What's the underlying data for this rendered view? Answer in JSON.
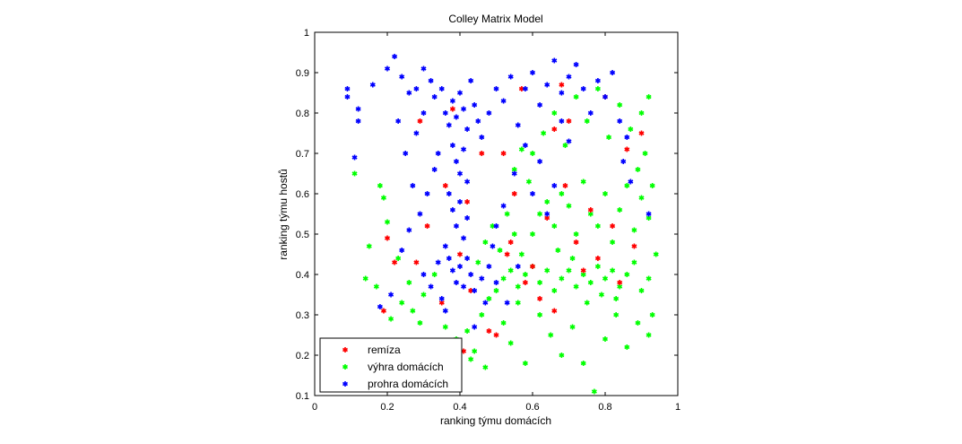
{
  "chart_data": {
    "type": "scatter",
    "title": "Colley Matrix Model",
    "xlabel": "ranking týmu domácích",
    "ylabel": "ranking týmu hostů",
    "xlim": [
      0,
      1
    ],
    "ylim": [
      0.1,
      1
    ],
    "xticks": [
      0,
      0.2,
      0.4,
      0.6,
      0.8,
      1
    ],
    "xtick_labels": [
      "0",
      "0.2",
      "0.4",
      "0.6",
      "0.8",
      "1"
    ],
    "yticks": [
      0.1,
      0.2,
      0.3,
      0.4,
      0.5,
      0.6,
      0.7,
      0.8,
      0.9,
      1
    ],
    "ytick_labels": [
      "0.1",
      "0.2",
      "0.3",
      "0.4",
      "0.5",
      "0.6",
      "0.7",
      "0.8",
      "0.9",
      "1"
    ],
    "grid": false,
    "legend_position": "bottom-left",
    "marker": "*",
    "series": [
      {
        "name": "remíza",
        "color": "#ff0000",
        "points": [
          [
            0.2,
            0.49
          ],
          [
            0.22,
            0.43
          ],
          [
            0.19,
            0.31
          ],
          [
            0.28,
            0.43
          ],
          [
            0.29,
            0.78
          ],
          [
            0.36,
            0.62
          ],
          [
            0.38,
            0.81
          ],
          [
            0.4,
            0.45
          ],
          [
            0.42,
            0.58
          ],
          [
            0.43,
            0.36
          ],
          [
            0.46,
            0.7
          ],
          [
            0.48,
            0.26
          ],
          [
            0.5,
            0.25
          ],
          [
            0.52,
            0.7
          ],
          [
            0.53,
            0.45
          ],
          [
            0.54,
            0.48
          ],
          [
            0.55,
            0.6
          ],
          [
            0.57,
            0.86
          ],
          [
            0.58,
            0.38
          ],
          [
            0.6,
            0.42
          ],
          [
            0.62,
            0.34
          ],
          [
            0.64,
            0.54
          ],
          [
            0.66,
            0.31
          ],
          [
            0.66,
            0.76
          ],
          [
            0.68,
            0.87
          ],
          [
            0.69,
            0.62
          ],
          [
            0.7,
            0.78
          ],
          [
            0.72,
            0.48
          ],
          [
            0.74,
            0.41
          ],
          [
            0.76,
            0.56
          ],
          [
            0.78,
            0.44
          ],
          [
            0.8,
            0.84
          ],
          [
            0.82,
            0.52
          ],
          [
            0.84,
            0.38
          ],
          [
            0.86,
            0.71
          ],
          [
            0.88,
            0.47
          ],
          [
            0.9,
            0.75
          ],
          [
            0.41,
            0.21
          ],
          [
            0.35,
            0.33
          ],
          [
            0.31,
            0.52
          ]
        ]
      },
      {
        "name": "výhra domácích",
        "color": "#00ff00",
        "points": [
          [
            0.11,
            0.65
          ],
          [
            0.14,
            0.39
          ],
          [
            0.17,
            0.37
          ],
          [
            0.19,
            0.59
          ],
          [
            0.21,
            0.29
          ],
          [
            0.24,
            0.33
          ],
          [
            0.27,
            0.31
          ],
          [
            0.29,
            0.28
          ],
          [
            0.33,
            0.22
          ],
          [
            0.36,
            0.27
          ],
          [
            0.39,
            0.24
          ],
          [
            0.42,
            0.26
          ],
          [
            0.44,
            0.21
          ],
          [
            0.46,
            0.3
          ],
          [
            0.48,
            0.34
          ],
          [
            0.5,
            0.36
          ],
          [
            0.52,
            0.39
          ],
          [
            0.54,
            0.41
          ],
          [
            0.56,
            0.37
          ],
          [
            0.58,
            0.4
          ],
          [
            0.6,
            0.42
          ],
          [
            0.62,
            0.38
          ],
          [
            0.64,
            0.41
          ],
          [
            0.66,
            0.36
          ],
          [
            0.68,
            0.39
          ],
          [
            0.7,
            0.41
          ],
          [
            0.72,
            0.37
          ],
          [
            0.74,
            0.4
          ],
          [
            0.76,
            0.38
          ],
          [
            0.78,
            0.42
          ],
          [
            0.8,
            0.39
          ],
          [
            0.82,
            0.41
          ],
          [
            0.84,
            0.37
          ],
          [
            0.86,
            0.4
          ],
          [
            0.88,
            0.43
          ],
          [
            0.9,
            0.36
          ],
          [
            0.92,
            0.39
          ],
          [
            0.6,
            0.5
          ],
          [
            0.62,
            0.55
          ],
          [
            0.64,
            0.58
          ],
          [
            0.66,
            0.52
          ],
          [
            0.68,
            0.6
          ],
          [
            0.7,
            0.57
          ],
          [
            0.72,
            0.5
          ],
          [
            0.74,
            0.63
          ],
          [
            0.76,
            0.55
          ],
          [
            0.78,
            0.52
          ],
          [
            0.8,
            0.6
          ],
          [
            0.82,
            0.48
          ],
          [
            0.84,
            0.56
          ],
          [
            0.86,
            0.62
          ],
          [
            0.88,
            0.51
          ],
          [
            0.9,
            0.59
          ],
          [
            0.92,
            0.54
          ],
          [
            0.6,
            0.7
          ],
          [
            0.63,
            0.75
          ],
          [
            0.66,
            0.8
          ],
          [
            0.69,
            0.72
          ],
          [
            0.72,
            0.84
          ],
          [
            0.75,
            0.78
          ],
          [
            0.78,
            0.86
          ],
          [
            0.81,
            0.74
          ],
          [
            0.84,
            0.82
          ],
          [
            0.87,
            0.76
          ],
          [
            0.9,
            0.8
          ],
          [
            0.92,
            0.84
          ],
          [
            0.55,
            0.66
          ],
          [
            0.57,
            0.71
          ],
          [
            0.59,
            0.63
          ],
          [
            0.62,
            0.3
          ],
          [
            0.65,
            0.25
          ],
          [
            0.68,
            0.2
          ],
          [
            0.71,
            0.27
          ],
          [
            0.74,
            0.18
          ],
          [
            0.77,
            0.11
          ],
          [
            0.8,
            0.24
          ],
          [
            0.83,
            0.3
          ],
          [
            0.86,
            0.22
          ],
          [
            0.89,
            0.28
          ],
          [
            0.92,
            0.25
          ],
          [
            0.52,
            0.28
          ],
          [
            0.54,
            0.23
          ],
          [
            0.56,
            0.33
          ],
          [
            0.58,
            0.18
          ],
          [
            0.47,
            0.17
          ],
          [
            0.43,
            0.19
          ],
          [
            0.45,
            0.43
          ],
          [
            0.47,
            0.48
          ],
          [
            0.49,
            0.52
          ],
          [
            0.51,
            0.46
          ],
          [
            0.53,
            0.55
          ],
          [
            0.55,
            0.5
          ],
          [
            0.57,
            0.45
          ],
          [
            0.3,
            0.35
          ],
          [
            0.33,
            0.4
          ],
          [
            0.26,
            0.38
          ],
          [
            0.23,
            0.44
          ],
          [
            0.2,
            0.53
          ],
          [
            0.18,
            0.62
          ],
          [
            0.15,
            0.47
          ],
          [
            0.91,
            0.7
          ],
          [
            0.93,
            0.62
          ],
          [
            0.89,
            0.66
          ],
          [
            0.94,
            0.45
          ],
          [
            0.93,
            0.3
          ],
          [
            0.75,
            0.33
          ],
          [
            0.79,
            0.35
          ],
          [
            0.83,
            0.34
          ],
          [
            0.71,
            0.44
          ],
          [
            0.67,
            0.46
          ]
        ]
      },
      {
        "name": "prohra domácích",
        "color": "#0000ff",
        "points": [
          [
            0.09,
            0.86
          ],
          [
            0.09,
            0.84
          ],
          [
            0.11,
            0.69
          ],
          [
            0.12,
            0.81
          ],
          [
            0.12,
            0.78
          ],
          [
            0.16,
            0.87
          ],
          [
            0.18,
            0.32
          ],
          [
            0.2,
            0.91
          ],
          [
            0.22,
            0.94
          ],
          [
            0.24,
            0.89
          ],
          [
            0.26,
            0.85
          ],
          [
            0.28,
            0.86
          ],
          [
            0.3,
            0.91
          ],
          [
            0.32,
            0.88
          ],
          [
            0.33,
            0.84
          ],
          [
            0.35,
            0.86
          ],
          [
            0.36,
            0.8
          ],
          [
            0.37,
            0.77
          ],
          [
            0.38,
            0.83
          ],
          [
            0.39,
            0.79
          ],
          [
            0.4,
            0.85
          ],
          [
            0.41,
            0.81
          ],
          [
            0.42,
            0.76
          ],
          [
            0.43,
            0.88
          ],
          [
            0.44,
            0.82
          ],
          [
            0.45,
            0.78
          ],
          [
            0.38,
            0.72
          ],
          [
            0.39,
            0.68
          ],
          [
            0.4,
            0.65
          ],
          [
            0.41,
            0.71
          ],
          [
            0.42,
            0.63
          ],
          [
            0.37,
            0.6
          ],
          [
            0.38,
            0.56
          ],
          [
            0.39,
            0.52
          ],
          [
            0.4,
            0.58
          ],
          [
            0.41,
            0.49
          ],
          [
            0.42,
            0.54
          ],
          [
            0.36,
            0.47
          ],
          [
            0.37,
            0.44
          ],
          [
            0.38,
            0.41
          ],
          [
            0.39,
            0.38
          ],
          [
            0.4,
            0.42
          ],
          [
            0.41,
            0.37
          ],
          [
            0.42,
            0.44
          ],
          [
            0.43,
            0.4
          ],
          [
            0.3,
            0.4
          ],
          [
            0.32,
            0.37
          ],
          [
            0.34,
            0.43
          ],
          [
            0.35,
            0.34
          ],
          [
            0.36,
            0.31
          ],
          [
            0.44,
            0.36
          ],
          [
            0.46,
            0.39
          ],
          [
            0.48,
            0.42
          ],
          [
            0.5,
            0.38
          ],
          [
            0.29,
            0.55
          ],
          [
            0.31,
            0.6
          ],
          [
            0.33,
            0.66
          ],
          [
            0.34,
            0.7
          ],
          [
            0.28,
            0.75
          ],
          [
            0.3,
            0.8
          ],
          [
            0.46,
            0.74
          ],
          [
            0.48,
            0.8
          ],
          [
            0.5,
            0.86
          ],
          [
            0.52,
            0.83
          ],
          [
            0.54,
            0.89
          ],
          [
            0.56,
            0.77
          ],
          [
            0.58,
            0.86
          ],
          [
            0.6,
            0.9
          ],
          [
            0.62,
            0.82
          ],
          [
            0.64,
            0.87
          ],
          [
            0.66,
            0.93
          ],
          [
            0.68,
            0.85
          ],
          [
            0.7,
            0.89
          ],
          [
            0.72,
            0.92
          ],
          [
            0.74,
            0.86
          ],
          [
            0.76,
            0.8
          ],
          [
            0.78,
            0.88
          ],
          [
            0.8,
            0.84
          ],
          [
            0.82,
            0.9
          ],
          [
            0.84,
            0.78
          ],
          [
            0.86,
            0.74
          ],
          [
            0.85,
            0.68
          ],
          [
            0.87,
            0.63
          ],
          [
            0.55,
            0.65
          ],
          [
            0.58,
            0.72
          ],
          [
            0.6,
            0.6
          ],
          [
            0.62,
            0.68
          ],
          [
            0.64,
            0.55
          ],
          [
            0.66,
            0.62
          ],
          [
            0.5,
            0.52
          ],
          [
            0.52,
            0.57
          ],
          [
            0.49,
            0.47
          ],
          [
            0.47,
            0.33
          ],
          [
            0.44,
            0.27
          ],
          [
            0.27,
            0.62
          ],
          [
            0.25,
            0.7
          ],
          [
            0.23,
            0.78
          ],
          [
            0.26,
            0.51
          ],
          [
            0.24,
            0.46
          ],
          [
            0.21,
            0.35
          ],
          [
            0.53,
            0.33
          ],
          [
            0.56,
            0.42
          ],
          [
            0.92,
            0.55
          ],
          [
            0.7,
            0.73
          ],
          [
            0.68,
            0.78
          ]
        ]
      }
    ]
  }
}
